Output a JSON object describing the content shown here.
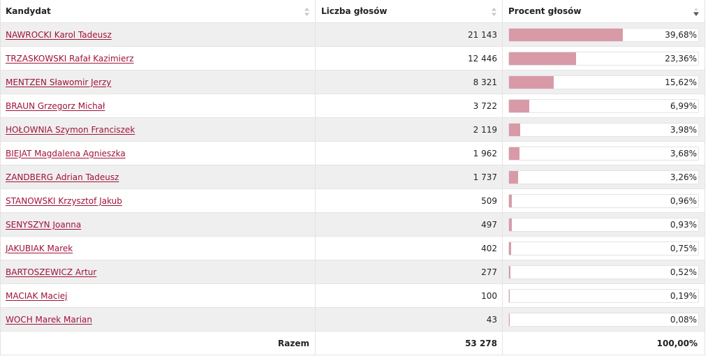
{
  "header": {
    "candidate": "Kandydat",
    "votes": "Liczba głosów",
    "percent": "Procent głosów"
  },
  "sort_icons": {
    "candidate": "sort-both-icon",
    "votes": "sort-both-icon",
    "percent": "sort-desc-icon"
  },
  "colors": {
    "link": "#a0123a",
    "bar": "#d99aa8",
    "row_alt": "#efefef"
  },
  "rows": [
    {
      "name": "NAWROCKI Karol Tadeusz",
      "votes": "21 143",
      "percent": "39,68%",
      "share": 39.68
    },
    {
      "name": "TRZASKOWSKI Rafał Kazimierz",
      "votes": "12 446",
      "percent": "23,36%",
      "share": 23.36
    },
    {
      "name": "MENTZEN Sławomir Jerzy",
      "votes": "8 321",
      "percent": "15,62%",
      "share": 15.62
    },
    {
      "name": "BRAUN Grzegorz Michał",
      "votes": "3 722",
      "percent": "6,99%",
      "share": 6.99
    },
    {
      "name": "HOŁOWNIA Szymon Franciszek",
      "votes": "2 119",
      "percent": "3,98%",
      "share": 3.98
    },
    {
      "name": "BIEJAT Magdalena Agnieszka",
      "votes": "1 962",
      "percent": "3,68%",
      "share": 3.68
    },
    {
      "name": "ZANDBERG Adrian Tadeusz",
      "votes": "1 737",
      "percent": "3,26%",
      "share": 3.26
    },
    {
      "name": "STANOWSKI Krzysztof Jakub",
      "votes": "509",
      "percent": "0,96%",
      "share": 0.96
    },
    {
      "name": "SENYSZYN Joanna",
      "votes": "497",
      "percent": "0,93%",
      "share": 0.93
    },
    {
      "name": "JAKUBIAK Marek",
      "votes": "402",
      "percent": "0,75%",
      "share": 0.75
    },
    {
      "name": "BARTOSZEWICZ Artur",
      "votes": "277",
      "percent": "0,52%",
      "share": 0.52
    },
    {
      "name": "MACIAK Maciej",
      "votes": "100",
      "percent": "0,19%",
      "share": 0.19
    },
    {
      "name": "WOCH Marek Marian",
      "votes": "43",
      "percent": "0,08%",
      "share": 0.08
    }
  ],
  "total": {
    "label": "Razem",
    "votes": "53 278",
    "percent": "100,00%"
  }
}
